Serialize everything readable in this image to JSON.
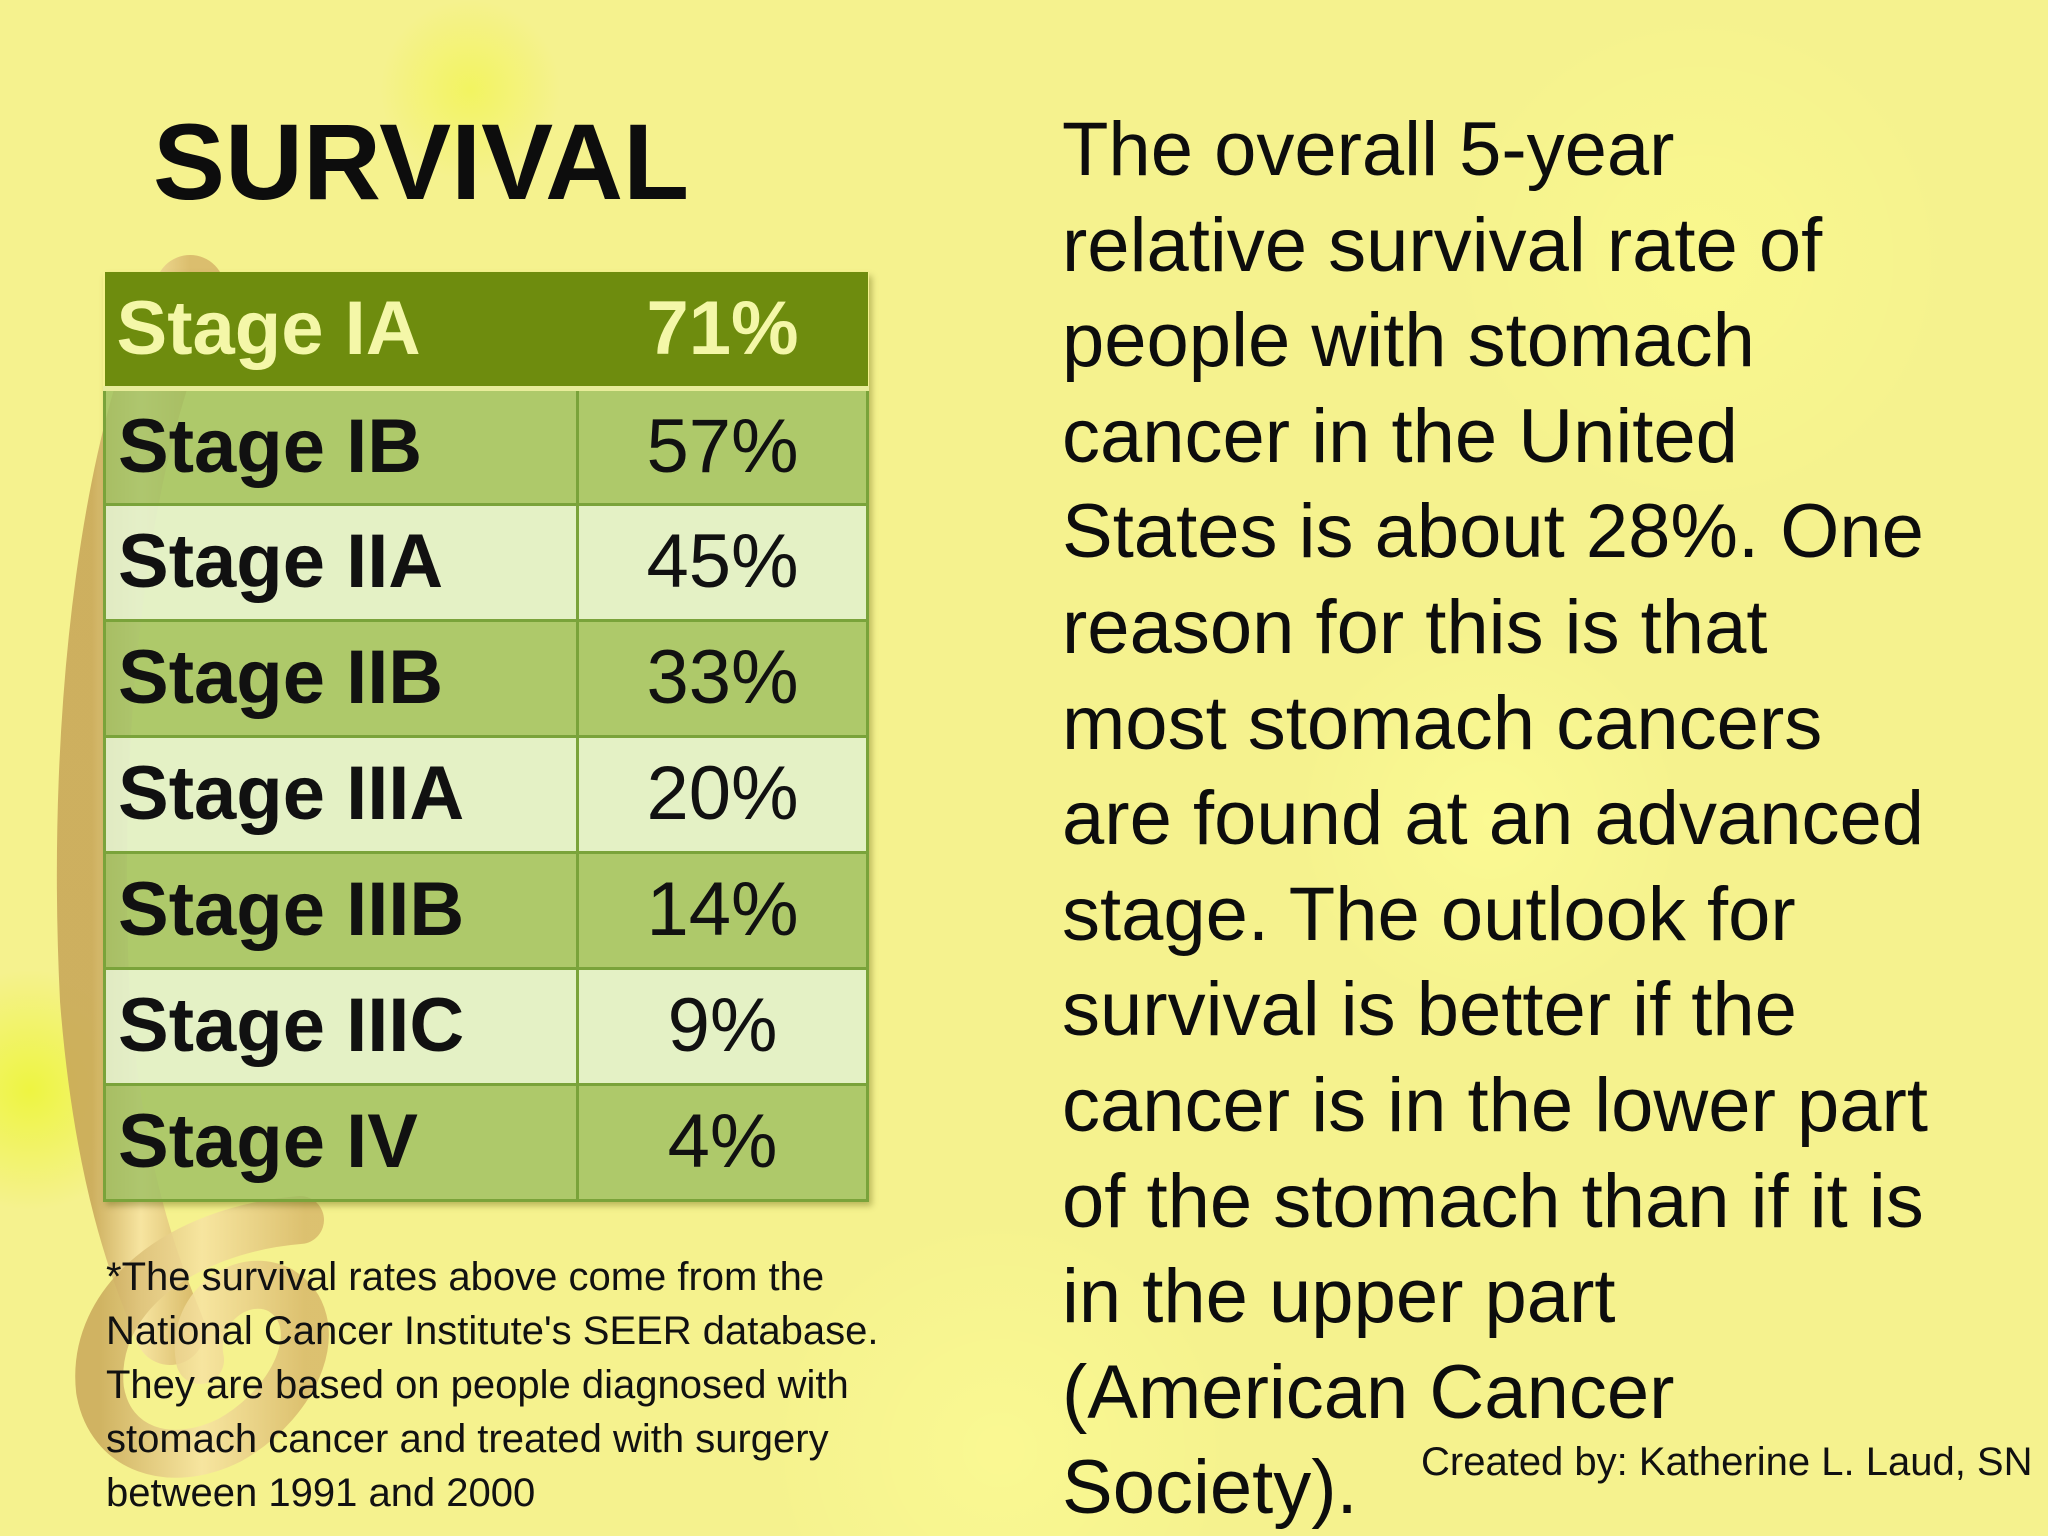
{
  "title": "SURVIVAL",
  "table": {
    "rows": [
      {
        "stage": "Stage IA",
        "rate": "71%"
      },
      {
        "stage": "Stage IB",
        "rate": "57%"
      },
      {
        "stage": "Stage IIA",
        "rate": "45%"
      },
      {
        "stage": "Stage IIB",
        "rate": "33%"
      },
      {
        "stage": "Stage IIIA",
        "rate": "20%"
      },
      {
        "stage": "Stage IIIB",
        "rate": "14%"
      },
      {
        "stage": "Stage IIIC",
        "rate": "9%"
      },
      {
        "stage": "Stage IV",
        "rate": "4%"
      }
    ]
  },
  "footnote": {
    "lines": [
      "*The survival rates above come from the",
      "National Cancer Institute's SEER database.",
      "They are based on people diagnosed with",
      "stomach cancer and treated with surgery",
      "between 1991 and 2000"
    ]
  },
  "body": {
    "lines": [
      "The overall 5-year",
      "relative survival rate of",
      "people with stomach",
      "cancer in the United",
      "States is about 28%. One",
      "reason for this is that",
      "most stomach cancers",
      "are found at an advanced",
      "stage. The outlook for",
      "survival is better if the",
      "cancer is in the lower part",
      "of the stomach than if it is",
      "in the upper part",
      "(American Cancer",
      "Society)."
    ]
  },
  "credit": "Created by: Katherine L. Laud, SN",
  "colors": {
    "background": "#f5f28e",
    "table_header": "#6e8c0e",
    "table_header_text": "#f4f7a8",
    "row_dark": "#9abe60",
    "row_light": "#e1f0cd"
  }
}
